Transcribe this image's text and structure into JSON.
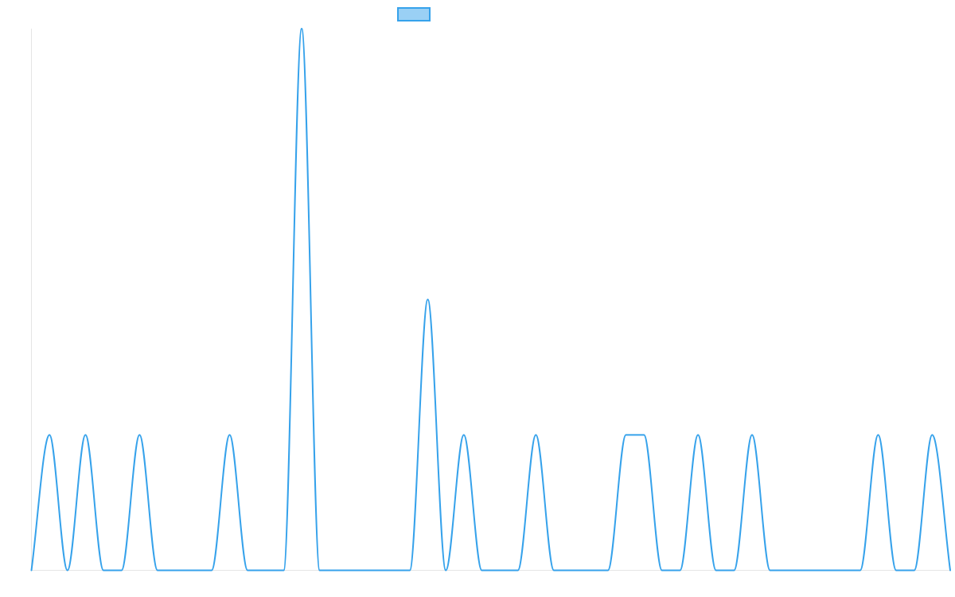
{
  "chart_data": {
    "type": "line",
    "x": [
      0,
      1,
      2,
      3,
      4,
      5,
      6,
      7,
      8,
      9,
      10,
      11,
      12,
      13,
      14,
      15,
      16,
      17,
      18,
      19,
      20,
      21,
      22,
      23,
      24,
      25,
      26,
      27,
      28,
      29,
      30,
      31,
      32,
      33,
      34,
      35,
      36,
      37,
      38,
      39,
      40,
      41,
      42,
      43,
      44,
      45,
      46,
      47,
      48,
      49,
      50,
      51
    ],
    "series": [
      {
        "name": "",
        "color": "#36a2eb",
        "fill": "#9ad0f5",
        "values": [
          0,
          1,
          0,
          1,
          0,
          0,
          1,
          0,
          0,
          0,
          0,
          1,
          0,
          0,
          0,
          4,
          0,
          0,
          0,
          0,
          0,
          0,
          2,
          0,
          1,
          0,
          0,
          0,
          1,
          0,
          0,
          0,
          0,
          1,
          1,
          0,
          0,
          1,
          0,
          0,
          1,
          0,
          0,
          0,
          0,
          0,
          0,
          1,
          0,
          0,
          1,
          0
        ]
      }
    ],
    "ylim": [
      0,
      4
    ],
    "grid": false,
    "legend": "top-center"
  }
}
